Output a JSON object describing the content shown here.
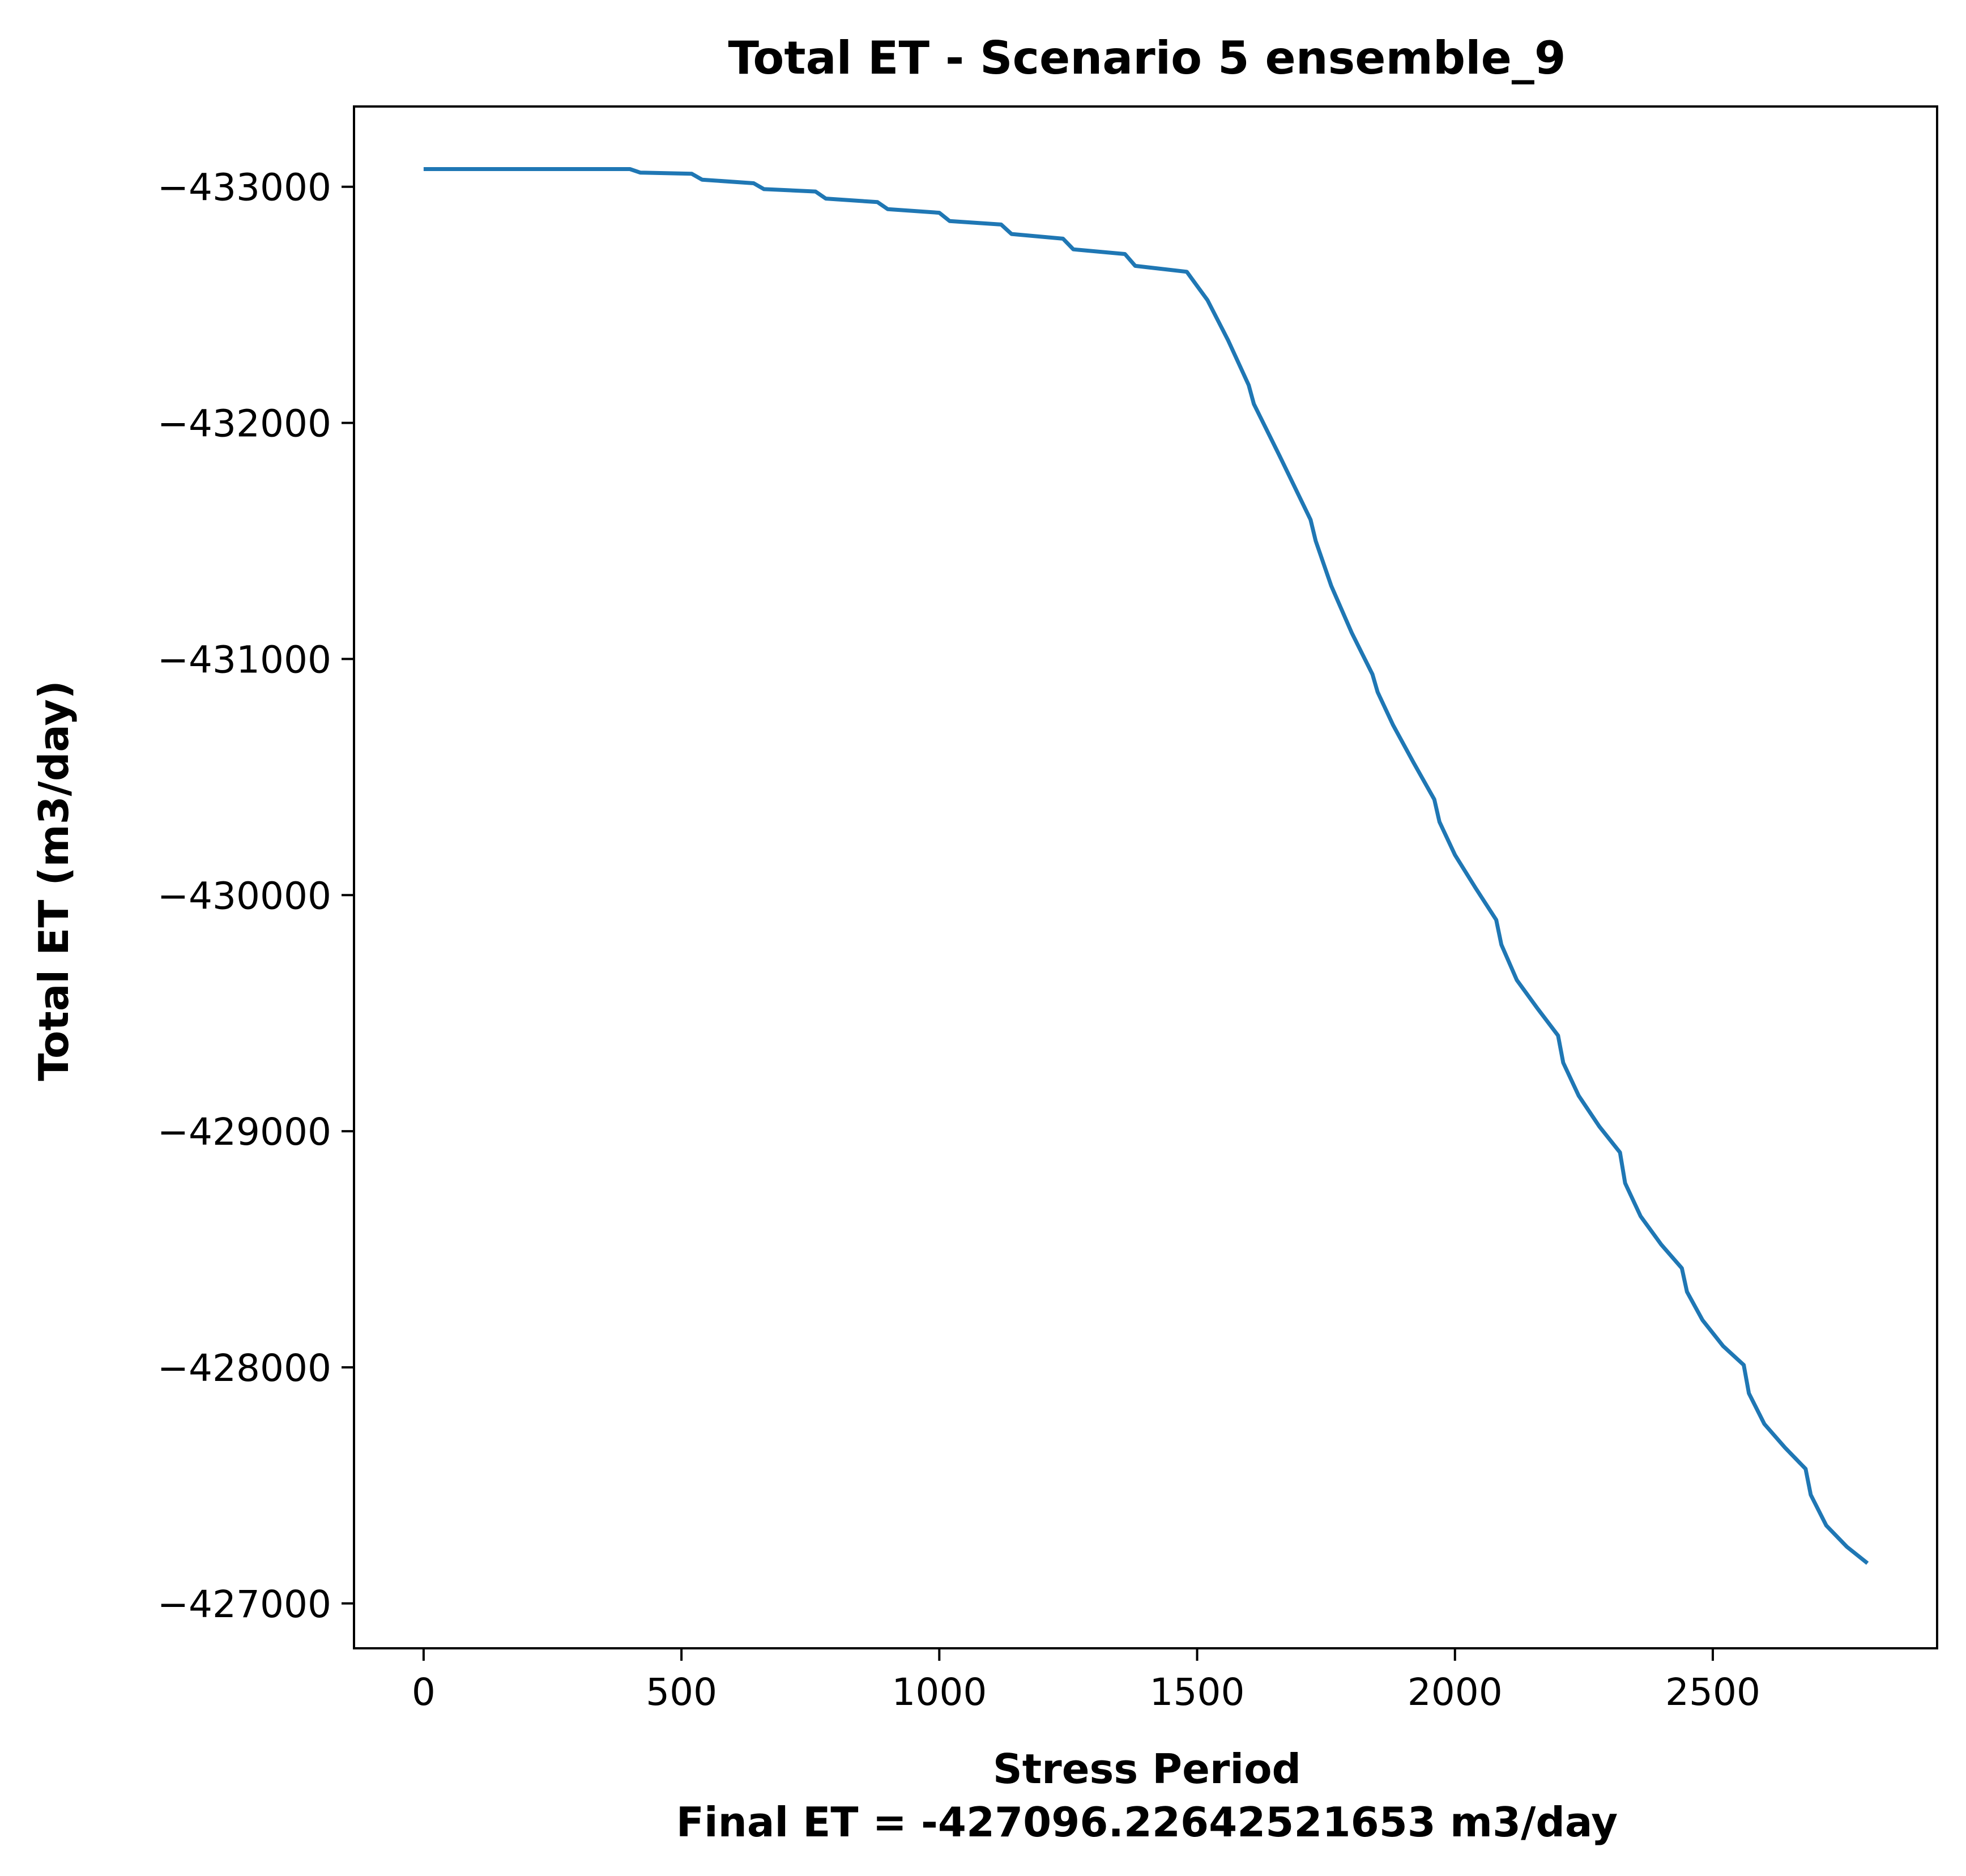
{
  "chart_data": {
    "type": "line",
    "title": "Total ET - Scenario 5 ensemble_9",
    "xlabel": "Stress Period",
    "xlabel_note": "Final ET = -427096.22642521653 m3/day",
    "ylabel": "Total ET (m3/day)",
    "xlim": [
      -135,
      2935
    ],
    "ylim": [
      -433340,
      -426810
    ],
    "y_inverted": true,
    "grid": false,
    "xticks": [
      0,
      500,
      1000,
      1500,
      2000,
      2500
    ],
    "xtick_labels": [
      "0",
      "500",
      "1000",
      "1500",
      "2000",
      "2500"
    ],
    "yticks": [
      -433000,
      -432000,
      -431000,
      -430000,
      -429000,
      -428000,
      -427000
    ],
    "ytick_labels": [
      "−433000",
      "−432000",
      "−431000",
      "−430000",
      "−429000",
      "−428000",
      "−427000"
    ],
    "series": [
      {
        "color": "#1f77b4",
        "x": [
          0,
          400,
          420,
          520,
          540,
          640,
          660,
          760,
          780,
          880,
          900,
          1000,
          1020,
          1120,
          1140,
          1240,
          1260,
          1360,
          1380,
          1480,
          1500,
          1520,
          1560,
          1600,
          1610,
          1660,
          1700,
          1720,
          1730,
          1760,
          1800,
          1840,
          1850,
          1880,
          1920,
          1960,
          1970,
          2000,
          2040,
          2080,
          2090,
          2120,
          2160,
          2200,
          2210,
          2240,
          2280,
          2320,
          2330,
          2360,
          2400,
          2440,
          2450,
          2480,
          2520,
          2560,
          2570,
          2600,
          2640,
          2680,
          2690,
          2720,
          2760,
          2800
        ],
        "y": [
          -433075,
          -433075,
          -433060,
          -433055,
          -433030,
          -433015,
          -432990,
          -432980,
          -432950,
          -432935,
          -432905,
          -432890,
          -432855,
          -432840,
          -432800,
          -432780,
          -432735,
          -432715,
          -432665,
          -432640,
          -432580,
          -432520,
          -432350,
          -432160,
          -432080,
          -431860,
          -431680,
          -431590,
          -431500,
          -431310,
          -431110,
          -430935,
          -430860,
          -430720,
          -430560,
          -430405,
          -430310,
          -430170,
          -430030,
          -429895,
          -429790,
          -429640,
          -429520,
          -429405,
          -429290,
          -429150,
          -429020,
          -428910,
          -428780,
          -428640,
          -428520,
          -428420,
          -428320,
          -428200,
          -428090,
          -428010,
          -427890,
          -427760,
          -427660,
          -427570,
          -427460,
          -427330,
          -427240,
          -427170
        ]
      }
    ]
  }
}
